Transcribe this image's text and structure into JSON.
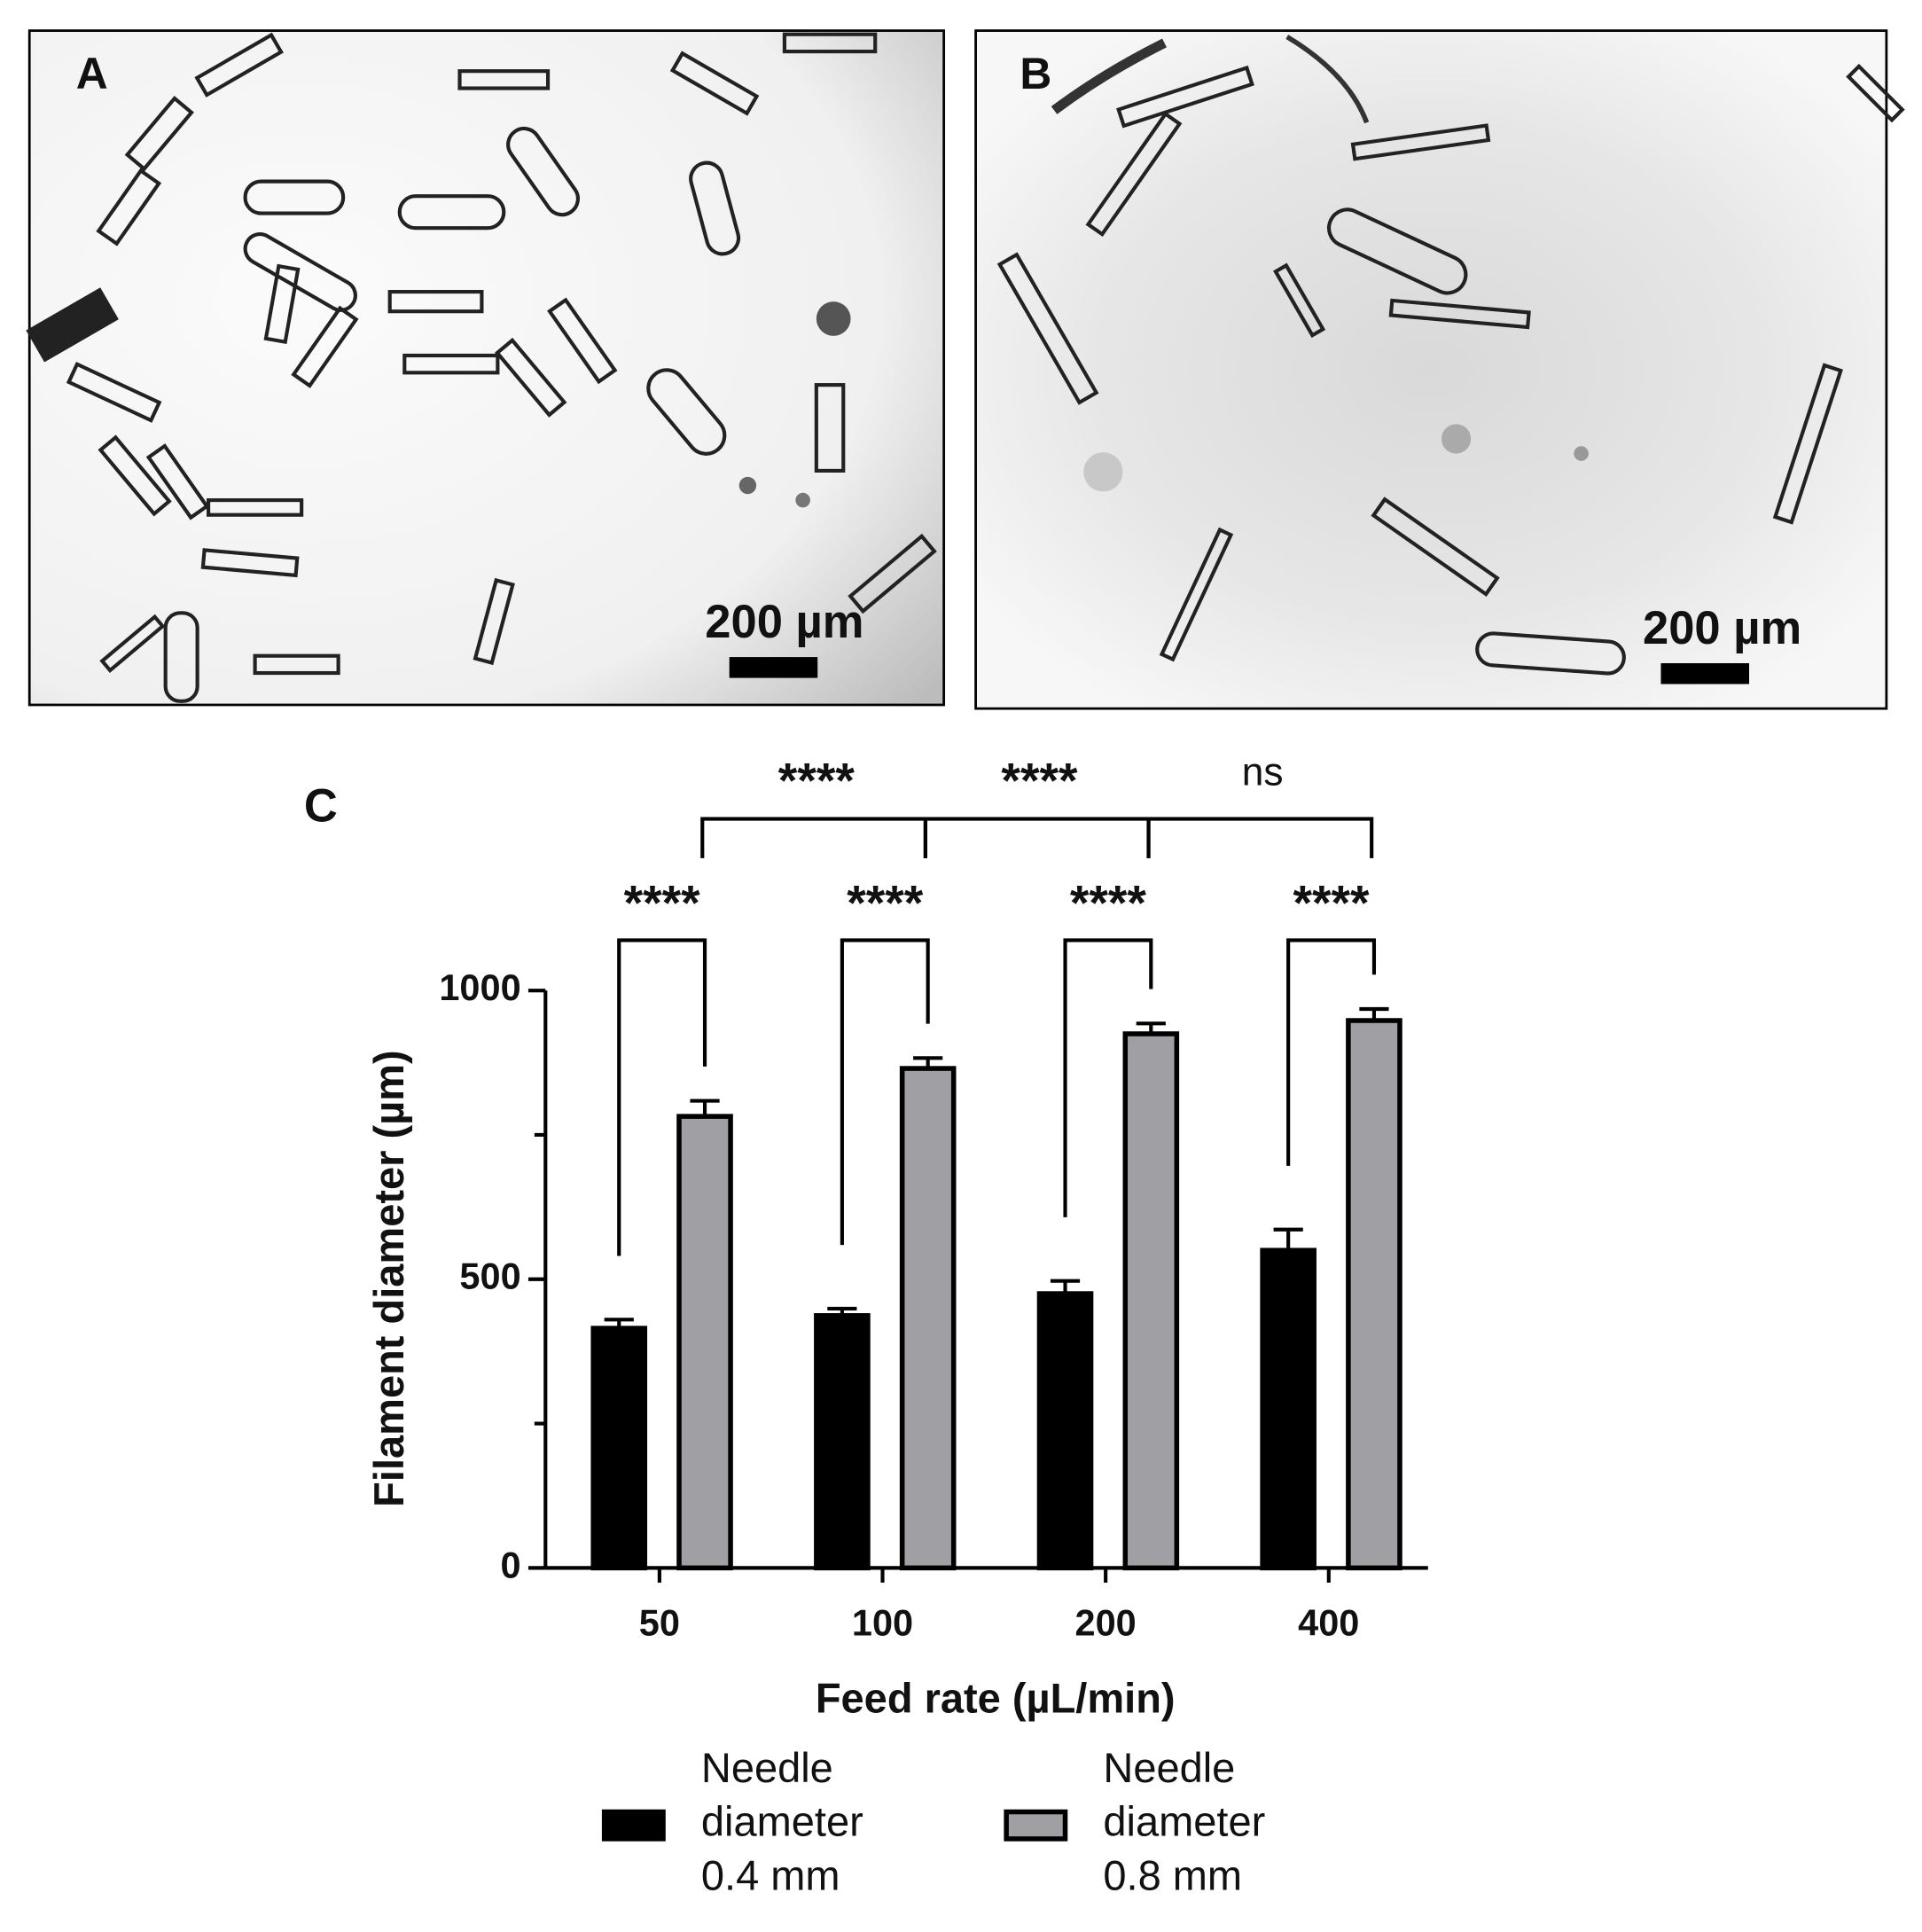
{
  "panels": [
    {
      "label": "A",
      "scale_bar": "200 µm"
    },
    {
      "label": "B",
      "scale_bar": "200 µm"
    }
  ],
  "chart_data": {
    "type": "bar",
    "panel_label": "C",
    "x_label": "Feed rate (µL/min)",
    "y_label": "Filament diameter (µm)",
    "categories": [
      "50",
      "100",
      "200",
      "400"
    ],
    "series": [
      {
        "name": "Needle diameter 0.4 mm",
        "color": "#000000",
        "values": [
          415,
          437,
          475,
          550
        ],
        "errors": [
          15,
          12,
          22,
          36
        ]
      },
      {
        "name": "Needle diameter 0.8 mm",
        "color": "#a0a0a4",
        "values": [
          782,
          865,
          925,
          948
        ],
        "errors": [
          27,
          18,
          18,
          20
        ]
      }
    ],
    "ylim": [
      0,
      1000
    ],
    "yticks": [
      0,
      500,
      1000
    ],
    "yminorticks": [
      250,
      750
    ],
    "within_significance": [
      "****",
      "****",
      "****",
      "****"
    ],
    "between_significance": [
      "****",
      "****",
      "ns"
    ]
  }
}
